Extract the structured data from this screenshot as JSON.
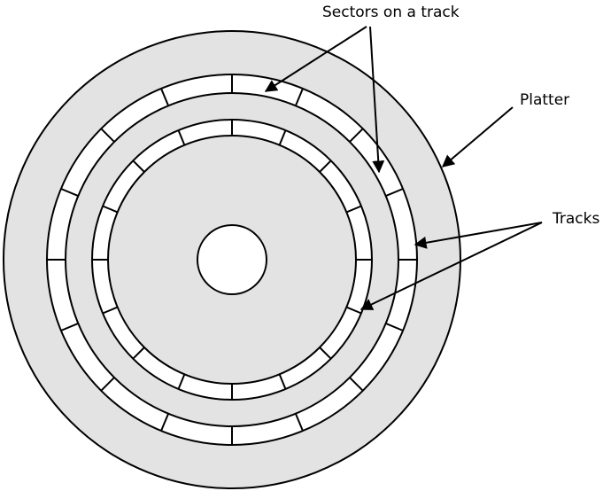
{
  "labels": {
    "sectors": "Sectors on a track",
    "platter": "Platter",
    "tracks": "Tracks"
  },
  "diagram": {
    "outer_track_sectors": 16,
    "inner_track_sectors": 16
  },
  "colors": {
    "platter_fill": "#e3e3e3",
    "track_fill": "#ffffff",
    "stroke": "#000000",
    "text": "#000000"
  }
}
